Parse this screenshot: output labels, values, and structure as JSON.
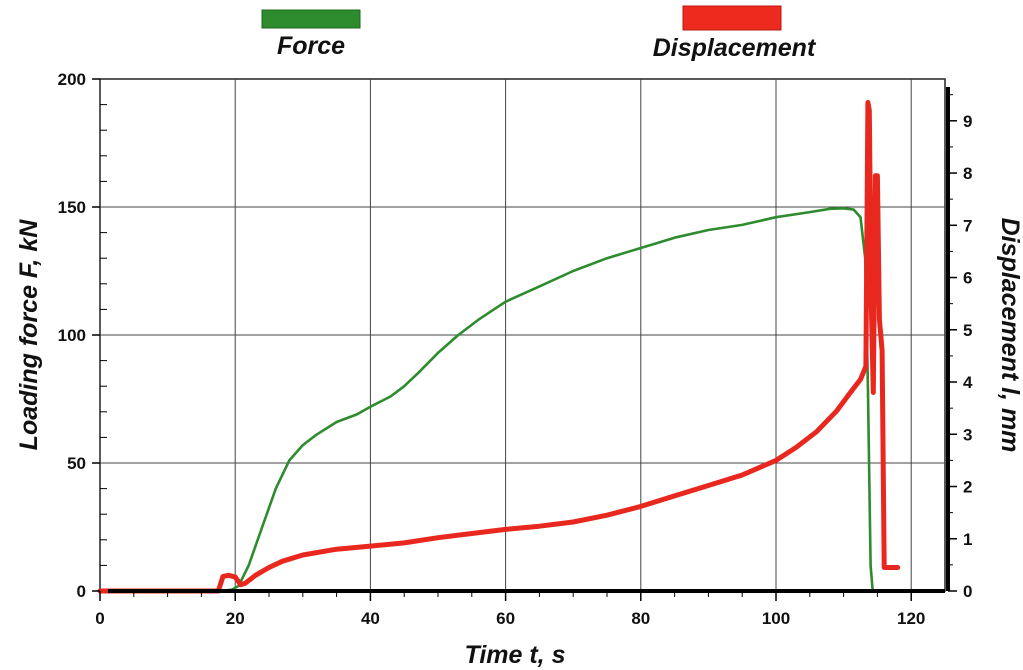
{
  "chart_data": {
    "type": "line",
    "xlabel": "Time t,  s",
    "ylabel": "Loading force F, kN",
    "y2label": "Displacement  l,  mm",
    "xlim": [
      0,
      125
    ],
    "ylim": [
      0,
      200
    ],
    "y2lim": [
      0,
      9.8
    ],
    "x_ticks": [
      0,
      20,
      40,
      60,
      80,
      100,
      120
    ],
    "x_tick_labels": [
      "0",
      "20",
      "40",
      "60",
      "80",
      "100",
      "120"
    ],
    "y_ticks": [
      0,
      50,
      100,
      150,
      200
    ],
    "y_tick_labels": [
      "0",
      "50",
      "100",
      "150",
      "200"
    ],
    "y2_ticks": [
      0,
      1,
      2,
      3,
      4,
      5,
      6,
      7,
      8,
      9
    ],
    "y2_tick_labels": [
      "0",
      "1",
      "2",
      "3",
      "4",
      "5",
      "6",
      "7",
      "8",
      "9"
    ],
    "grid": true,
    "legend_position": "top",
    "series": [
      {
        "name": "Force",
        "axis": "left",
        "color": "#2e8b2e",
        "x": [
          0,
          18,
          19.5,
          20.5,
          22,
          24,
          26,
          28,
          30,
          32,
          35,
          38,
          40,
          43,
          45,
          47,
          50,
          53,
          56,
          60,
          65,
          70,
          75,
          80,
          85,
          90,
          95,
          100,
          105,
          108,
          110,
          111.5,
          112.5,
          113.2,
          113.6,
          114,
          114.3,
          118
        ],
        "y": [
          0,
          0,
          0.5,
          2,
          10,
          25,
          40,
          51,
          57,
          61,
          66,
          69,
          72,
          76,
          80,
          85,
          93,
          100,
          106,
          113,
          119,
          125,
          130,
          134,
          138,
          141,
          143,
          146,
          148,
          149.3,
          149.5,
          149,
          146,
          130,
          80,
          10,
          0,
          0
        ]
      },
      {
        "name": "Displacement",
        "axis": "right",
        "color": "#e8281e",
        "x": [
          0,
          17.5,
          18.2,
          19,
          20,
          20.8,
          21.5,
          23,
          25,
          27,
          30,
          35,
          40,
          45,
          50,
          55,
          60,
          65,
          70,
          75,
          80,
          85,
          90,
          95,
          100,
          103,
          106,
          109,
          111,
          112.5,
          113.3,
          113.6,
          113.8,
          114.1,
          114.4,
          114.7,
          115,
          115.3,
          115.7,
          116,
          116.2,
          118
        ],
        "y": [
          0,
          0,
          0.28,
          0.3,
          0.27,
          0.12,
          0.15,
          0.3,
          0.45,
          0.57,
          0.69,
          0.8,
          0.86,
          0.92,
          1.02,
          1.1,
          1.18,
          1.24,
          1.32,
          1.45,
          1.62,
          1.82,
          2.02,
          2.22,
          2.5,
          2.75,
          3.05,
          3.45,
          3.8,
          4.05,
          4.3,
          9.35,
          9.2,
          5.5,
          3.8,
          7.95,
          7.95,
          5.2,
          4.6,
          0.45,
          0.45,
          0.45
        ]
      }
    ]
  }
}
